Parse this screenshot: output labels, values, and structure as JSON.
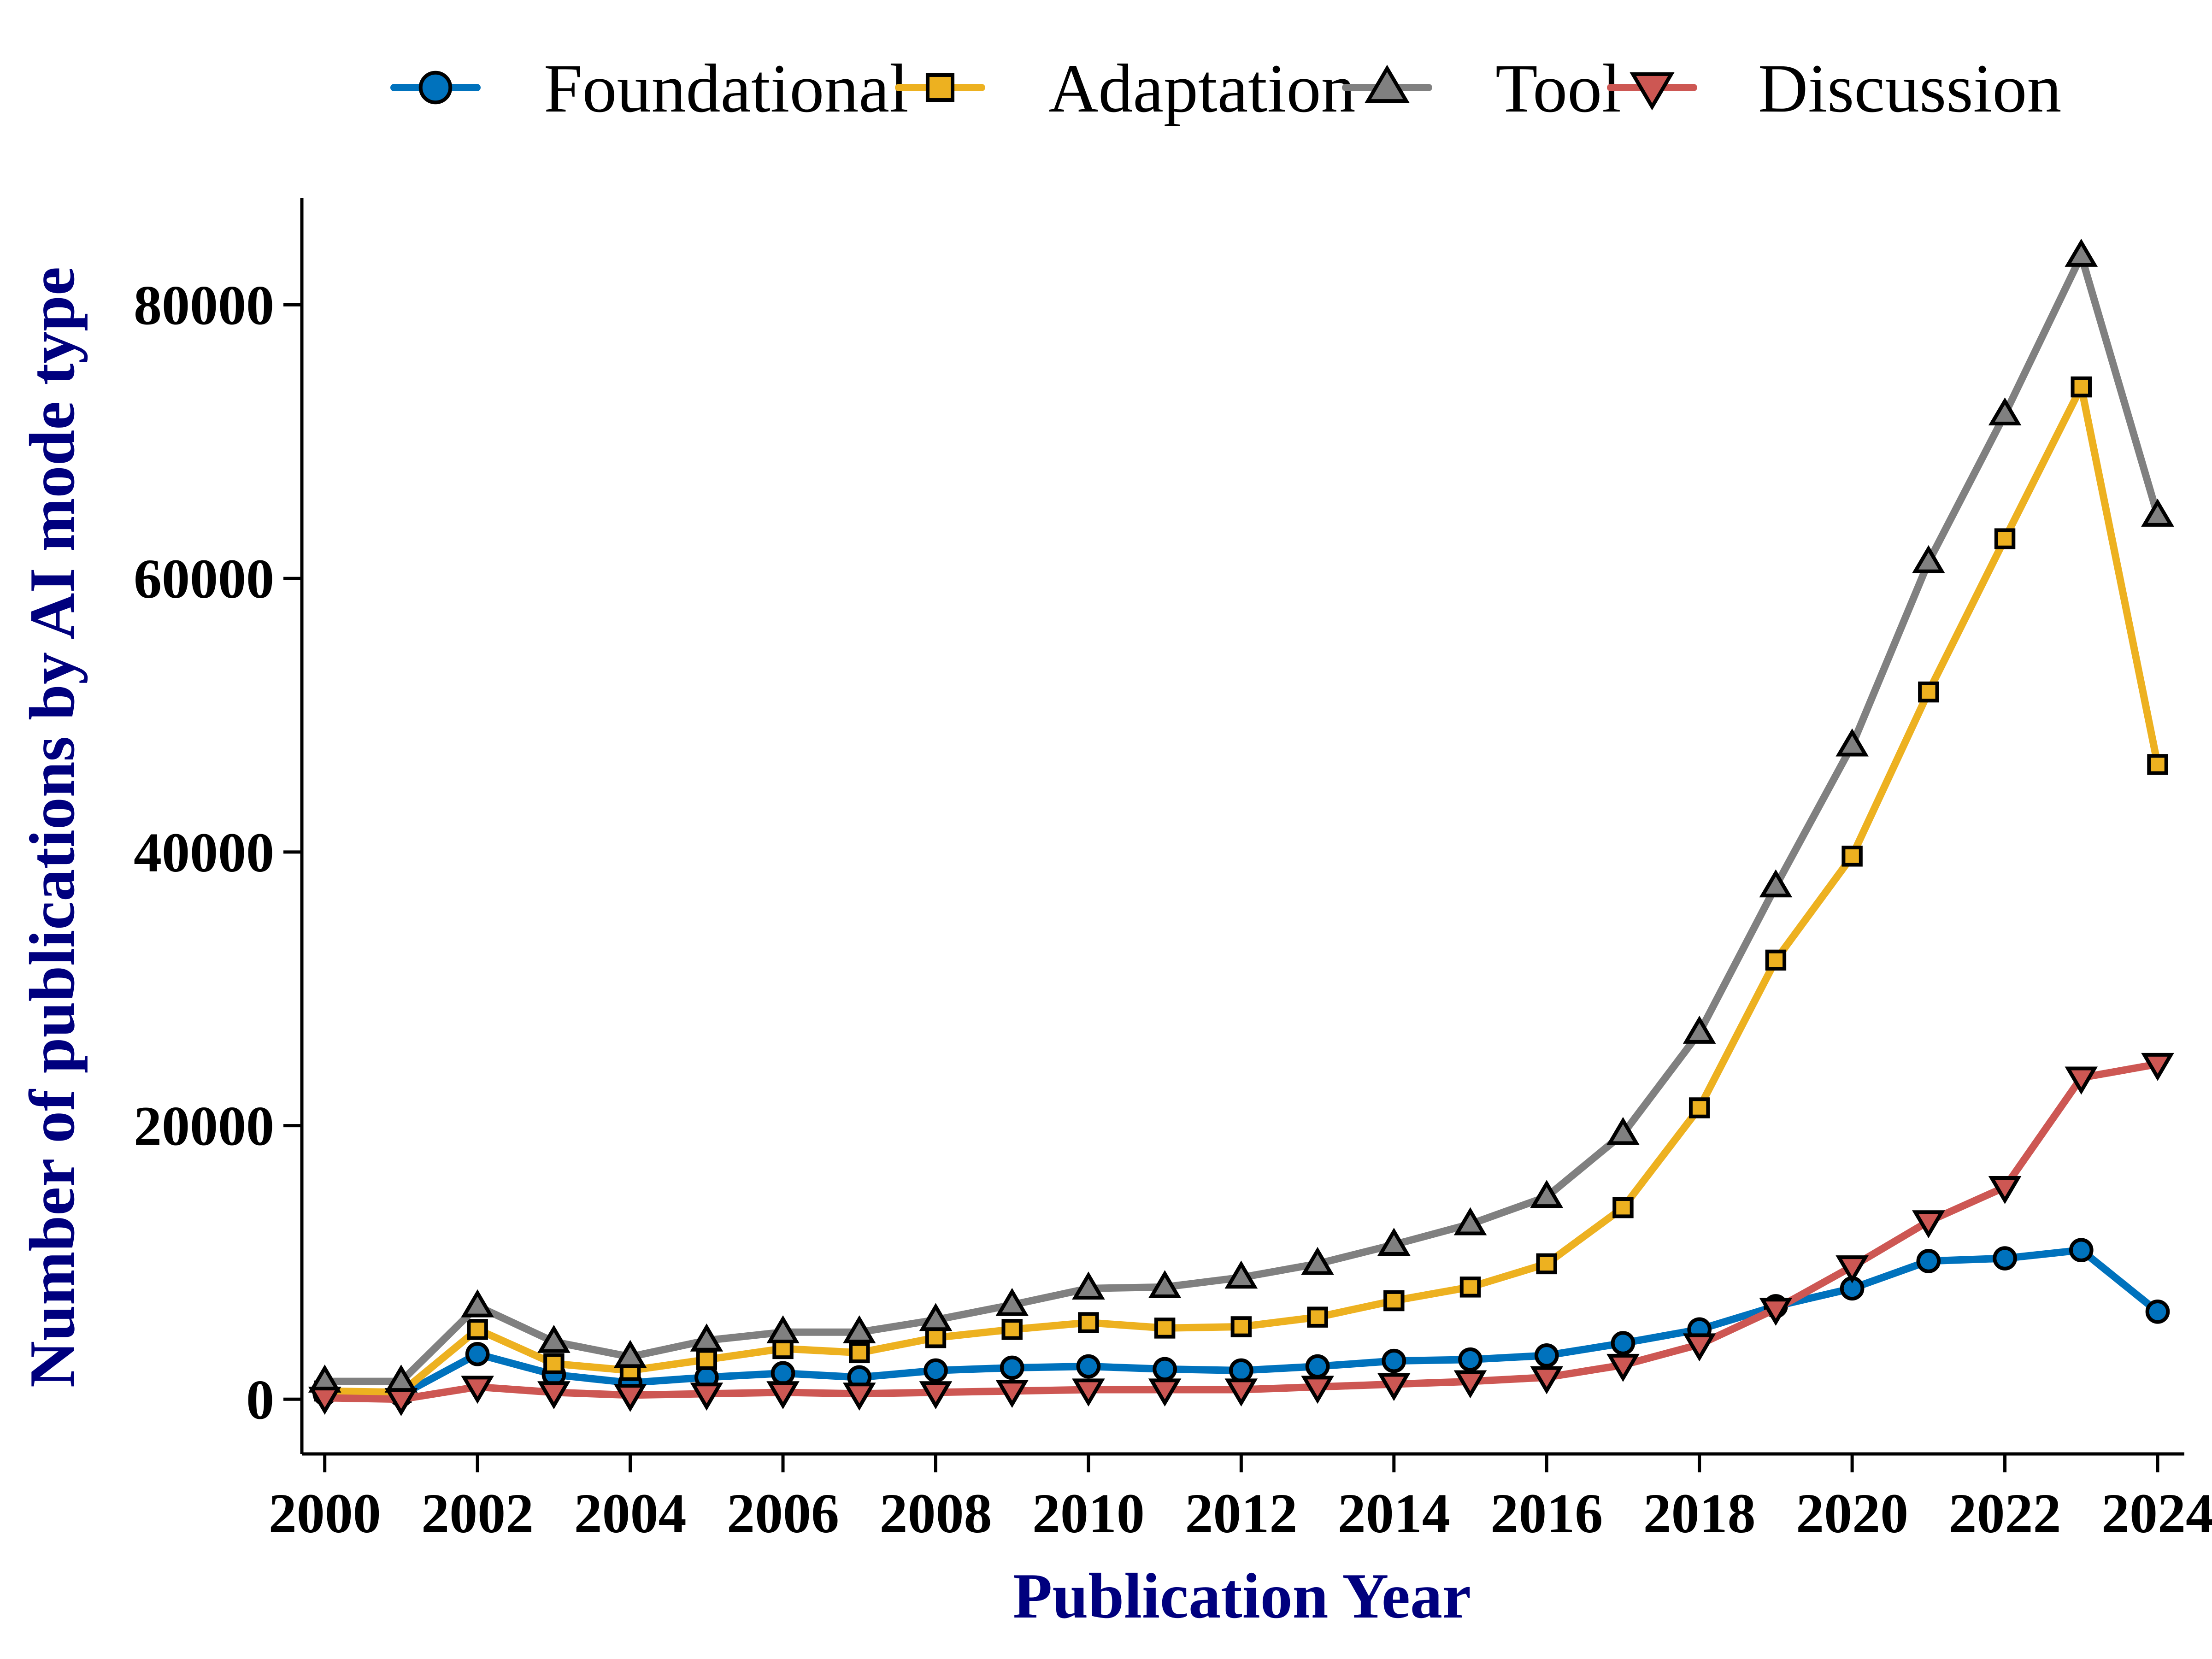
{
  "chart_data": {
    "type": "line",
    "xlabel": "Publication Year",
    "ylabel": "Number of publications by AI mode type",
    "x": [
      2000,
      2001,
      2002,
      2003,
      2004,
      2005,
      2006,
      2007,
      2008,
      2009,
      2010,
      2011,
      2012,
      2013,
      2014,
      2015,
      2016,
      2017,
      2018,
      2019,
      2020,
      2021,
      2022,
      2023,
      2024
    ],
    "xticks": [
      "2000",
      "2002",
      "2004",
      "2006",
      "2008",
      "2010",
      "2012",
      "2014",
      "2016",
      "2018",
      "2020",
      "2022",
      "2024"
    ],
    "yticks": [
      "0",
      "20000",
      "40000",
      "60000",
      "80000"
    ],
    "xlim": [
      1999.7,
      2024.35
    ],
    "ylim": [
      -4000,
      87800
    ],
    "grid": false,
    "legend_position": "top",
    "series": [
      {
        "name": "Foundational",
        "color": "#0072BD",
        "marker": "circle",
        "values": [
          400,
          300,
          3300,
          1800,
          1200,
          1600,
          1900,
          1600,
          2100,
          2300,
          2400,
          2200,
          2100,
          2400,
          2800,
          2900,
          3200,
          4100,
          5100,
          6800,
          8100,
          10100,
          10300,
          10900,
          6400
        ]
      },
      {
        "name": "Adaptation",
        "color": "#EDB120",
        "marker": "square",
        "values": [
          600,
          500,
          5100,
          2600,
          2100,
          2900,
          3700,
          3400,
          4500,
          5100,
          5600,
          5200,
          5300,
          6000,
          7200,
          8200,
          9900,
          14000,
          21300,
          32100,
          39700,
          51700,
          62900,
          74000,
          46400
        ]
      },
      {
        "name": "Tool",
        "color": "#808080",
        "marker": "triangle-up",
        "values": [
          1300,
          1300,
          6800,
          4200,
          3100,
          4300,
          4900,
          4900,
          5800,
          6900,
          8100,
          8200,
          8900,
          9900,
          11300,
          12800,
          14800,
          19400,
          26800,
          37500,
          47800,
          61200,
          72000,
          83600,
          64600
        ]
      },
      {
        "name": "Discussion",
        "color": "#CD5753",
        "marker": "triangle-down",
        "values": [
          100,
          0,
          900,
          500,
          300,
          400,
          500,
          400,
          500,
          600,
          700,
          700,
          700,
          900,
          1100,
          1300,
          1600,
          2500,
          4000,
          6600,
          9700,
          13000,
          15500,
          23500,
          24500
        ]
      }
    ]
  }
}
